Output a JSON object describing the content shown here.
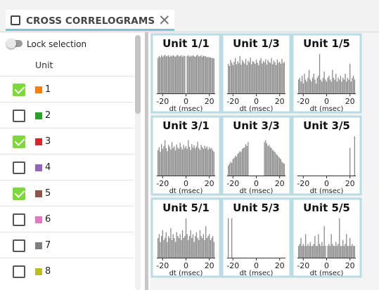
{
  "tab": {
    "title": "CROSS CORRELOGRAMS",
    "close_glyph": "✕",
    "icon": "square-outline-icon"
  },
  "sidebar": {
    "lock_label": "Lock selection",
    "column_header": "Unit",
    "units": [
      {
        "label": "1",
        "checked": true,
        "color": "#ff7f0e"
      },
      {
        "label": "2",
        "checked": false,
        "color": "#2ca02c"
      },
      {
        "label": "3",
        "checked": true,
        "color": "#d62728"
      },
      {
        "label": "4",
        "checked": false,
        "color": "#9467bd"
      },
      {
        "label": "5",
        "checked": true,
        "color": "#8c564b"
      },
      {
        "label": "6",
        "checked": false,
        "color": "#e377c2"
      },
      {
        "label": "7",
        "checked": false,
        "color": "#7f7f7f"
      },
      {
        "label": "8",
        "checked": false,
        "color": "#bcbd22"
      }
    ]
  },
  "colors": {
    "panel_border": "#b9dde3",
    "bar": "#8a8a8a",
    "check_on": "#7dd93a"
  },
  "chart_data": [
    {
      "type": "bar",
      "title": "Unit 1/1",
      "xlabel": "dt (msec)",
      "xticks": [
        "-20",
        "0",
        "20"
      ],
      "xlim": [
        -25,
        25
      ],
      "x": [
        -24,
        -23,
        -22,
        -21,
        -20,
        -19,
        -18,
        -17,
        -16,
        -15,
        -14,
        -13,
        -12,
        -11,
        -10,
        -9,
        -8,
        -7,
        -6,
        -5,
        -4,
        -3,
        -2,
        -1,
        0,
        1,
        2,
        3,
        4,
        5,
        6,
        7,
        8,
        9,
        10,
        11,
        12,
        13,
        14,
        15,
        16,
        17,
        18,
        19,
        20,
        21,
        22,
        23,
        24
      ],
      "values": [
        0.9,
        0.95,
        0.92,
        0.97,
        0.93,
        0.96,
        0.98,
        0.94,
        0.95,
        0.97,
        0.93,
        0.96,
        0.94,
        0.97,
        0.95,
        0.93,
        0.96,
        0.98,
        0.94,
        0.95,
        0.97,
        0.93,
        0.96,
        0.95,
        0,
        0.95,
        0.97,
        0.93,
        0.96,
        0.94,
        0.97,
        0.95,
        0.93,
        0.96,
        0.98,
        0.94,
        0.95,
        0.97,
        0.93,
        0.96,
        0.95,
        0.94,
        0.92,
        0.93,
        0.91,
        0.92,
        0.9,
        0.9,
        0.89
      ]
    },
    {
      "type": "bar",
      "title": "Unit 1/3",
      "xlabel": "dt (msec)",
      "xticks": [
        "-20",
        "0",
        "20"
      ],
      "xlim": [
        -25,
        25
      ],
      "x": [
        -24,
        -23,
        -22,
        -21,
        -20,
        -19,
        -18,
        -17,
        -16,
        -15,
        -14,
        -13,
        -12,
        -11,
        -10,
        -9,
        -8,
        -7,
        -6,
        -5,
        -4,
        -3,
        -2,
        -1,
        0,
        1,
        2,
        3,
        4,
        5,
        6,
        7,
        8,
        9,
        10,
        11,
        12,
        13,
        14,
        15,
        16,
        17,
        18,
        19,
        20,
        21,
        22,
        23,
        24
      ],
      "values": [
        0.75,
        0.7,
        0.85,
        0.78,
        0.72,
        0.8,
        0.9,
        0.74,
        0.82,
        0.77,
        0.95,
        0.73,
        0.85,
        0.8,
        0.76,
        0.88,
        0.72,
        0.83,
        0.79,
        0.91,
        0.74,
        0.82,
        0.8,
        0.75,
        0.86,
        0.78,
        0.72,
        0.84,
        0.9,
        0.76,
        0.82,
        0.79,
        0.87,
        0.73,
        0.85,
        0.8,
        0.77,
        0.9,
        0.74,
        0.83,
        0.79,
        0.72,
        0.86,
        0.78,
        0.81,
        0.75,
        0.88,
        0.77,
        0.8
      ]
    },
    {
      "type": "bar",
      "title": "Unit 1/5",
      "xlabel": "dt (msec)",
      "xticks": [
        "-20",
        "0",
        "20"
      ],
      "xlim": [
        -25,
        25
      ],
      "x": [
        -24,
        -23,
        -22,
        -21,
        -20,
        -19,
        -18,
        -17,
        -16,
        -15,
        -14,
        -13,
        -12,
        -11,
        -10,
        -9,
        -8,
        -7,
        -6,
        -5,
        -4,
        -3,
        -2,
        -1,
        0,
        1,
        2,
        3,
        4,
        5,
        6,
        7,
        8,
        9,
        10,
        11,
        12,
        13,
        14,
        15,
        16,
        17,
        18,
        19,
        20,
        21,
        22,
        23,
        24
      ],
      "values": [
        0.35,
        0.4,
        0.3,
        0.45,
        0.25,
        0.5,
        0.35,
        0.3,
        0.4,
        0.6,
        0.35,
        0.3,
        0.4,
        0.5,
        0.35,
        0.25,
        0.4,
        0.45,
        1.0,
        0.35,
        0.3,
        0.4,
        0.55,
        0.35,
        0.3,
        0.4,
        0.45,
        0.35,
        0.3,
        0.6,
        0.4,
        0.35,
        0.5,
        0.3,
        0.4,
        0.35,
        0.45,
        0.3,
        0.4,
        0.35,
        0.5,
        0.3,
        0.4,
        0.35,
        0.75,
        0.3,
        0.4,
        0.45,
        0.35
      ]
    },
    {
      "type": "bar",
      "title": "Unit 3/1",
      "xlabel": "dt (msec)",
      "xticks": [
        "-20",
        "0",
        "20"
      ],
      "xlim": [
        -25,
        25
      ],
      "x": [
        -24,
        -23,
        -22,
        -21,
        -20,
        -19,
        -18,
        -17,
        -16,
        -15,
        -14,
        -13,
        -12,
        -11,
        -10,
        -9,
        -8,
        -7,
        -6,
        -5,
        -4,
        -3,
        -2,
        -1,
        0,
        1,
        2,
        3,
        4,
        5,
        6,
        7,
        8,
        9,
        10,
        11,
        12,
        13,
        14,
        15,
        16,
        17,
        18,
        19,
        20,
        21,
        22,
        23,
        24
      ],
      "values": [
        0.65,
        0.72,
        0.6,
        0.8,
        0.68,
        0.75,
        0.9,
        0.7,
        0.62,
        0.78,
        0.73,
        0.66,
        0.85,
        0.7,
        0.74,
        0.64,
        0.79,
        0.71,
        0.68,
        0.83,
        0.72,
        0.66,
        0.78,
        0.7,
        0.75,
        0.68,
        0.9,
        0.73,
        0.65,
        0.8,
        0.71,
        0.77,
        0.69,
        0.74,
        0.86,
        0.7,
        0.65,
        0.78,
        0.72,
        0.68,
        0.76,
        0.7,
        0.74,
        0.66,
        0.72,
        0.68,
        0.7,
        0.64,
        0.6
      ]
    },
    {
      "type": "bar",
      "title": "Unit 3/3",
      "xlabel": "dt (msec)",
      "xticks": [
        "-20",
        "0",
        "20"
      ],
      "xlim": [
        -25,
        25
      ],
      "x": [
        -24,
        -23,
        -22,
        -21,
        -20,
        -19,
        -18,
        -17,
        -16,
        -15,
        -14,
        -13,
        -12,
        -11,
        -10,
        -9,
        -8,
        -7,
        -6,
        -5,
        -4,
        -3,
        -2,
        -1,
        0,
        1,
        2,
        3,
        4,
        5,
        6,
        7,
        8,
        9,
        10,
        11,
        12,
        13,
        14,
        15,
        16,
        17,
        18,
        19,
        20,
        21,
        22,
        23,
        24
      ],
      "values": [
        0.25,
        0.3,
        0.35,
        0.32,
        0.42,
        0.45,
        0.5,
        0.48,
        0.55,
        0.58,
        0.62,
        0.6,
        0.68,
        0.7,
        0.72,
        0.8,
        0.75,
        0.85,
        0,
        0,
        0,
        0,
        0,
        0,
        0,
        0,
        0,
        0,
        0,
        0,
        0,
        0.85,
        0.9,
        0.82,
        0.75,
        0.78,
        0.72,
        0.7,
        0.65,
        0.62,
        0.6,
        0.55,
        0.52,
        0.48,
        0.45,
        0.42,
        0.35,
        0.32,
        0.3
      ]
    },
    {
      "type": "bar",
      "title": "Unit 3/5",
      "xlabel": "dt (msec)",
      "xticks": [
        "-20",
        "0",
        "20"
      ],
      "xlim": [
        -25,
        25
      ],
      "x": [
        20,
        24
      ],
      "values": [
        0.7,
        1.0
      ]
    },
    {
      "type": "bar",
      "title": "Unit 5/1",
      "xlabel": "dt (msec)",
      "xticks": [
        "-20",
        "0",
        "20"
      ],
      "xlim": [
        -25,
        25
      ],
      "x": [
        -24,
        -23,
        -22,
        -21,
        -20,
        -19,
        -18,
        -17,
        -16,
        -15,
        -14,
        -13,
        -12,
        -11,
        -10,
        -9,
        -8,
        -7,
        -6,
        -5,
        -4,
        -3,
        -2,
        -1,
        0,
        1,
        2,
        3,
        4,
        5,
        6,
        7,
        8,
        9,
        10,
        11,
        12,
        13,
        14,
        15,
        16,
        17,
        18,
        19,
        20,
        21,
        22,
        23,
        24
      ],
      "values": [
        0.5,
        0.6,
        0.4,
        0.55,
        0.7,
        0.45,
        0.5,
        0.65,
        0.4,
        0.55,
        0.5,
        0.75,
        0.45,
        0.6,
        0.5,
        0.4,
        0.65,
        0.55,
        0.5,
        0.6,
        0.45,
        0.7,
        0.5,
        0.55,
        1.0,
        0.6,
        0.45,
        0.55,
        0.7,
        0.5,
        0.6,
        0.4,
        0.55,
        0.65,
        0.5,
        0.45,
        0.7,
        0.55,
        0.5,
        0.6,
        0.45,
        0.8,
        0.5,
        0.55,
        0.6,
        0.45,
        0.5,
        0.55,
        0.4
      ]
    },
    {
      "type": "bar",
      "title": "Unit 5/3",
      "xlabel": "dt (msec)",
      "xticks": [
        "-20",
        "0",
        "20"
      ],
      "xlim": [
        -25,
        25
      ],
      "x": [
        -24,
        -21
      ],
      "values": [
        1.0,
        1.0
      ]
    },
    {
      "type": "bar",
      "title": "Unit 5/5",
      "xlabel": "dt (msec)",
      "xticks": [
        "-20",
        "0",
        "20"
      ],
      "xlim": [
        -25,
        25
      ],
      "x": [
        -24,
        -23,
        -22,
        -21,
        -20,
        -19,
        -18,
        -17,
        -16,
        -15,
        -14,
        -13,
        -12,
        -11,
        -10,
        -9,
        -8,
        -7,
        -6,
        -5,
        -4,
        -3,
        -2,
        -1,
        0,
        1,
        2,
        3,
        4,
        5,
        6,
        7,
        8,
        9,
        10,
        11,
        12,
        13,
        14,
        15,
        16,
        17,
        18,
        19,
        20,
        21,
        22,
        23,
        24
      ],
      "values": [
        0.3,
        0.35,
        0.5,
        0.3,
        0.35,
        0.3,
        0.6,
        0.3,
        0.35,
        0.3,
        0.4,
        0.3,
        0.3,
        0.35,
        0.55,
        0.3,
        0.3,
        0.6,
        0.35,
        0.3,
        0.4,
        0.3,
        0.8,
        0.3,
        0,
        0.3,
        0.35,
        0.3,
        0.6,
        0.35,
        0.3,
        0.3,
        0.4,
        0.3,
        0.35,
        1.0,
        0.3,
        0.3,
        0.45,
        0.3,
        0.35,
        0.6,
        0.3,
        0.3,
        0.5,
        0.3,
        0.35,
        0.3,
        0.3
      ]
    }
  ]
}
